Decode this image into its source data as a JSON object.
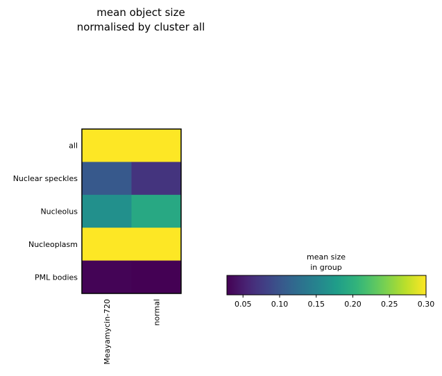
{
  "chart_data": {
    "type": "heatmap",
    "title": "mean object size\nnormalised by cluster all",
    "rows": [
      "all",
      "Nuclear speckles",
      "Nucleolus",
      "Nucleoplasm",
      "PML bodies"
    ],
    "columns": [
      "Meayamycin-720",
      "normal"
    ],
    "values": [
      [
        0.3,
        0.3
      ],
      [
        0.104,
        0.069
      ],
      [
        0.164,
        0.191
      ],
      [
        0.3,
        0.3
      ],
      [
        0.03,
        0.028
      ]
    ],
    "colormap": "viridis",
    "clim": [
      0.028,
      0.3
    ],
    "colorbar_label": "mean size\nin group",
    "colorbar_ticks": [
      0.05,
      {
        "value": 0.1,
        "label": "0.10"
      },
      0.15,
      {
        "value": 0.2,
        "label": "0.20"
      },
      0.25,
      {
        "value": 0.3,
        "label": "0.30"
      }
    ]
  }
}
